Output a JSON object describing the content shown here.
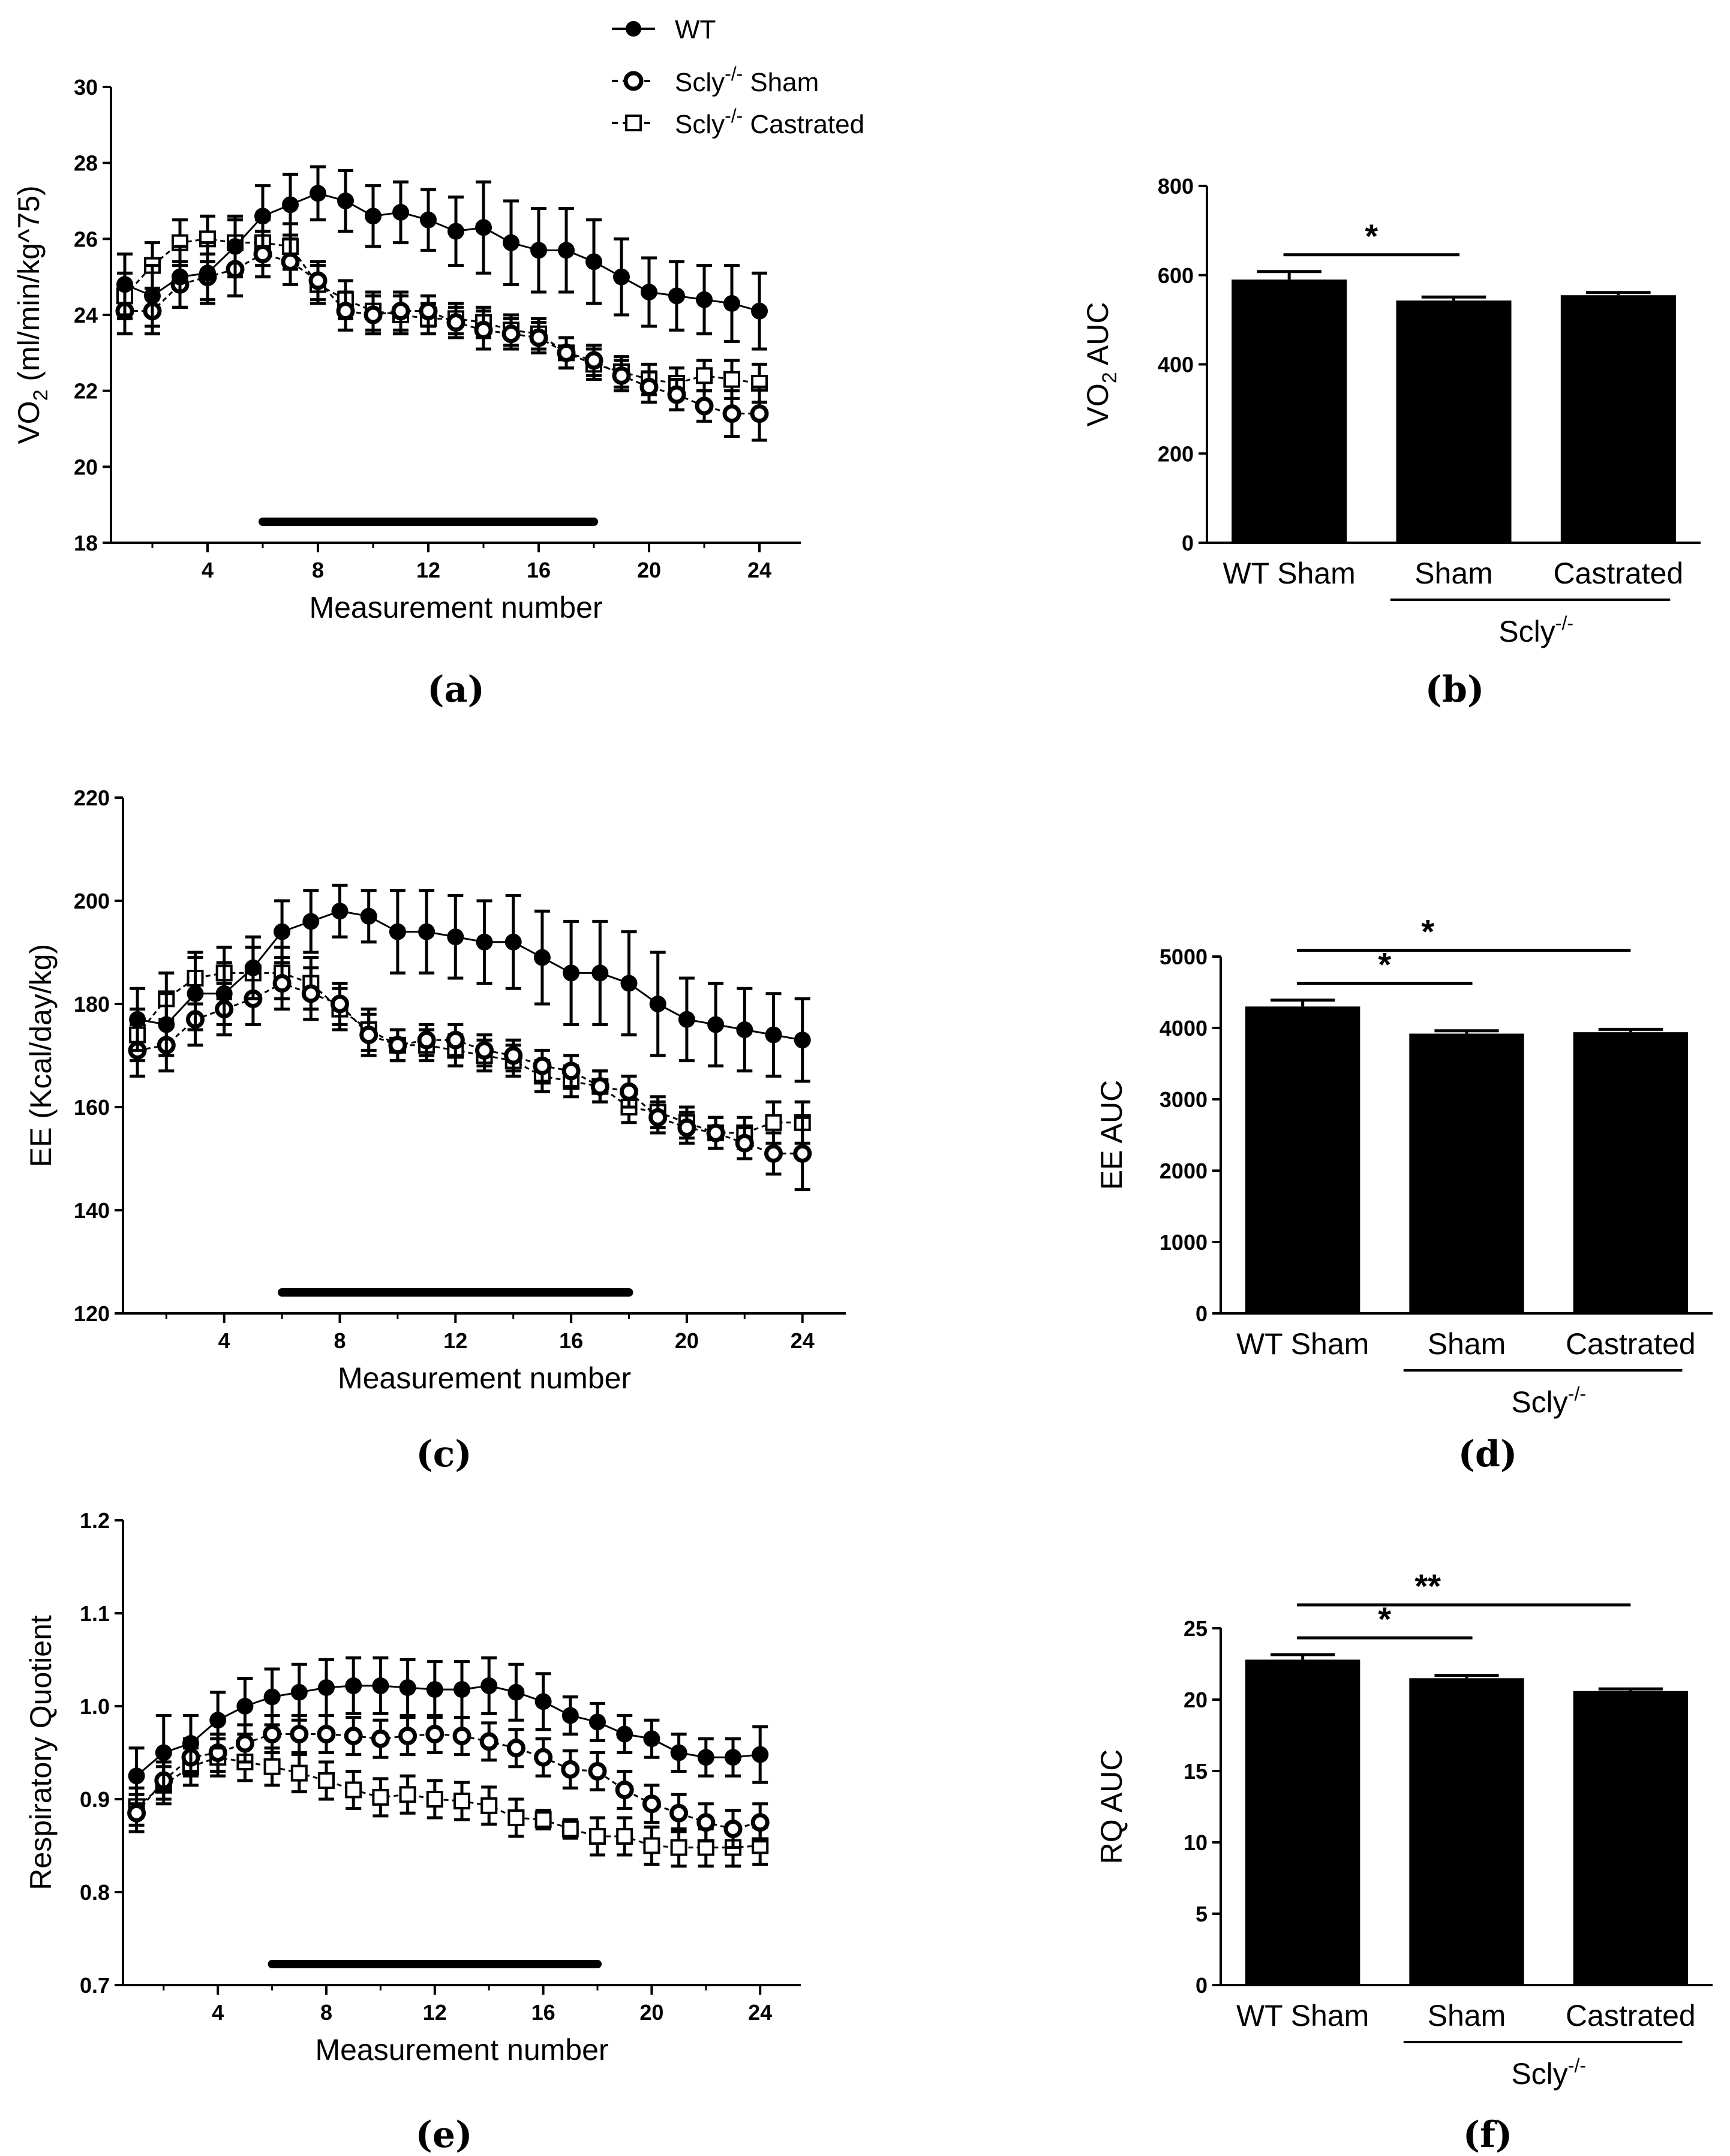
{
  "legend": {
    "wt": "WT",
    "sham": "Scly",
    "sham_suffix": "Sham",
    "castrated": "Scly",
    "castrated_suffix": "Castrated",
    "superscript": "-/-"
  },
  "chart_data": [
    {
      "id": "a",
      "type": "line",
      "panel_label": "(a)",
      "xlabel": "Measurement number",
      "ylabel": "VO",
      "ylabel_sub": "2",
      "ylabel_rest": " (ml/min/kg^75)",
      "xlim": [
        0.5,
        25.5
      ],
      "ylim": [
        18,
        30
      ],
      "xticks": [
        "4",
        "8",
        "12",
        "16",
        "20",
        "24"
      ],
      "yticks": [
        "18",
        "20",
        "22",
        "24",
        "26",
        "28",
        "30"
      ],
      "x": [
        1,
        2,
        3,
        4,
        5,
        6,
        7,
        8,
        9,
        10,
        11,
        12,
        13,
        14,
        15,
        16,
        17,
        18,
        19,
        20,
        21,
        22,
        23,
        24
      ],
      "series": [
        {
          "name": "WT",
          "marker": "filled-circle",
          "values": [
            24.8,
            24.5,
            25.0,
            25.1,
            25.8,
            26.6,
            26.9,
            27.2,
            27.0,
            26.6,
            26.7,
            26.5,
            26.2,
            26.3,
            25.9,
            25.7,
            25.7,
            25.4,
            25.0,
            24.6,
            24.5,
            24.4,
            24.3,
            24.1
          ],
          "errors": [
            0.8,
            0.8,
            0.8,
            0.8,
            0.8,
            0.8,
            0.8,
            0.7,
            0.8,
            0.8,
            0.8,
            0.8,
            0.9,
            1.2,
            1.1,
            1.1,
            1.1,
            1.1,
            1.0,
            0.9,
            0.9,
            0.9,
            1.0,
            1.0
          ]
        },
        {
          "name": "Scly-/- Sham",
          "marker": "open-circle",
          "values": [
            24.1,
            24.1,
            24.8,
            25.0,
            25.2,
            25.6,
            25.4,
            24.9,
            24.1,
            24.0,
            24.1,
            24.1,
            23.8,
            23.6,
            23.5,
            23.4,
            23.0,
            22.8,
            22.4,
            22.1,
            21.9,
            21.6,
            21.4,
            21.4
          ],
          "errors": [
            0.6,
            0.6,
            0.6,
            0.6,
            0.7,
            0.6,
            0.6,
            0.5,
            0.5,
            0.5,
            0.5,
            0.4,
            0.4,
            0.5,
            0.4,
            0.4,
            0.4,
            0.4,
            0.4,
            0.4,
            0.4,
            0.4,
            0.6,
            0.7
          ]
        },
        {
          "name": "Scly-/- Castrated",
          "marker": "open-square",
          "values": [
            24.5,
            25.3,
            25.9,
            26.0,
            25.9,
            25.9,
            25.8,
            24.8,
            24.4,
            24.1,
            24.0,
            23.9,
            23.9,
            23.8,
            23.6,
            23.5,
            23.0,
            22.7,
            22.5,
            22.3,
            22.2,
            22.4,
            22.3,
            22.2
          ],
          "errors": [
            0.6,
            0.6,
            0.6,
            0.6,
            0.6,
            0.6,
            0.6,
            0.5,
            0.5,
            0.5,
            0.5,
            0.4,
            0.4,
            0.4,
            0.4,
            0.4,
            0.4,
            0.4,
            0.4,
            0.4,
            0.4,
            0.4,
            0.5,
            0.5
          ]
        }
      ],
      "dark_phase": [
        6,
        18
      ]
    },
    {
      "id": "b",
      "type": "bar",
      "panel_label": "(b)",
      "ylabel": "VO",
      "ylabel_sub": "2",
      "ylabel_rest": " AUC",
      "ylim": [
        0,
        800
      ],
      "yticks": [
        "0",
        "200",
        "400",
        "600",
        "800"
      ],
      "categories": [
        "WT Sham",
        "Sham",
        "Castrated"
      ],
      "values": [
        590,
        543,
        555
      ],
      "errors": [
        18,
        8,
        6
      ],
      "group_label": "Scly",
      "group_sup": "-/-",
      "significance": [
        {
          "from": 0,
          "to": 1,
          "label": "*"
        }
      ]
    },
    {
      "id": "c",
      "type": "line",
      "panel_label": "(c)",
      "xlabel": "Measurement number",
      "ylabel": "EE (Kcal/day/kg)",
      "ylabel_sub": "",
      "ylabel_rest": "",
      "xlim": [
        0.5,
        25.5
      ],
      "ylim": [
        120,
        220
      ],
      "xticks": [
        "4",
        "8",
        "12",
        "16",
        "20",
        "24"
      ],
      "yticks": [
        "120",
        "140",
        "160",
        "180",
        "200",
        "220"
      ],
      "x": [
        1,
        2,
        3,
        4,
        5,
        6,
        7,
        8,
        9,
        10,
        11,
        12,
        13,
        14,
        15,
        16,
        17,
        18,
        19,
        20,
        21,
        22,
        23,
        24
      ],
      "series": [
        {
          "name": "WT",
          "marker": "filled-circle",
          "values": [
            177,
            176,
            182,
            182,
            187,
            194,
            196,
            198,
            197,
            194,
            194,
            193,
            192,
            192,
            189,
            186,
            186,
            184,
            180,
            177,
            176,
            175,
            174,
            173
          ],
          "errors": [
            6,
            6,
            7,
            6,
            6,
            6,
            6,
            5,
            5,
            8,
            8,
            8,
            8,
            9,
            9,
            10,
            10,
            10,
            10,
            8,
            8,
            8,
            8,
            8
          ]
        },
        {
          "name": "Scly-/- Sham",
          "marker": "open-circle",
          "values": [
            171,
            172,
            177,
            179,
            181,
            184,
            182,
            180,
            174,
            172,
            173,
            173,
            171,
            170,
            168,
            167,
            164,
            163,
            158,
            156,
            155,
            153,
            151,
            151
          ],
          "errors": [
            5,
            5,
            5,
            5,
            5,
            5,
            5,
            4,
            4,
            3,
            3,
            3,
            3,
            3,
            3,
            3,
            3,
            3,
            3,
            3,
            3,
            3,
            4,
            7
          ]
        },
        {
          "name": "Scly-/- Castrated",
          "marker": "open-square",
          "values": [
            174,
            181,
            185,
            186,
            186,
            186,
            184,
            179,
            175,
            172,
            172,
            171,
            170,
            169,
            166,
            165,
            164,
            160,
            159,
            157,
            155,
            155,
            157,
            157
          ],
          "errors": [
            5,
            5,
            5,
            5,
            5,
            5,
            5,
            4,
            4,
            3,
            3,
            3,
            3,
            3,
            3,
            3,
            3,
            3,
            3,
            3,
            3,
            3,
            4,
            4
          ]
        }
      ],
      "dark_phase": [
        6,
        18
      ]
    },
    {
      "id": "d",
      "type": "bar",
      "panel_label": "(d)",
      "ylabel": "EE AUC",
      "ylabel_sub": "",
      "ylabel_rest": "",
      "ylim": [
        0,
        5000
      ],
      "yticks": [
        "0",
        "1000",
        "2000",
        "3000",
        "4000",
        "5000"
      ],
      "categories": [
        "WT Sham",
        "Sham",
        "Castrated"
      ],
      "values": [
        4300,
        3920,
        3940
      ],
      "errors": [
        90,
        40,
        40
      ],
      "group_label": "Scly",
      "group_sup": "-/-",
      "significance": [
        {
          "from": 0,
          "to": 1,
          "label": "*"
        },
        {
          "from": 0,
          "to": 2,
          "label": "*"
        }
      ]
    },
    {
      "id": "e",
      "type": "line",
      "panel_label": "(e)",
      "xlabel": "Measurement number",
      "ylabel": "Respiratory Quotient",
      "ylabel_sub": "",
      "ylabel_rest": "",
      "xlim": [
        0.5,
        25.5
      ],
      "ylim": [
        0.7,
        1.2
      ],
      "xticks": [
        "4",
        "8",
        "12",
        "16",
        "20",
        "24"
      ],
      "yticks": [
        "0.7",
        "0.8",
        "0.9",
        "1.0",
        "1.1",
        "1.2"
      ],
      "x": [
        1,
        2,
        3,
        4,
        5,
        6,
        7,
        8,
        9,
        10,
        11,
        12,
        13,
        14,
        15,
        16,
        17,
        18,
        19,
        20,
        21,
        22,
        23,
        24
      ],
      "series": [
        {
          "name": "WT",
          "marker": "filled-circle",
          "values": [
            0.925,
            0.95,
            0.96,
            0.985,
            1.0,
            1.01,
            1.015,
            1.02,
            1.022,
            1.022,
            1.02,
            1.018,
            1.018,
            1.022,
            1.015,
            1.005,
            0.99,
            0.983,
            0.97,
            0.965,
            0.95,
            0.945,
            0.945,
            0.948
          ],
          "errors": [
            0.03,
            0.04,
            0.03,
            0.03,
            0.03,
            0.03,
            0.03,
            0.03,
            0.03,
            0.03,
            0.03,
            0.03,
            0.03,
            0.03,
            0.03,
            0.03,
            0.02,
            0.02,
            0.02,
            0.02,
            0.02,
            0.02,
            0.02,
            0.03
          ]
        },
        {
          "name": "Scly-/- Sham",
          "marker": "open-circle",
          "values": [
            0.885,
            0.92,
            0.945,
            0.95,
            0.96,
            0.97,
            0.97,
            0.97,
            0.968,
            0.965,
            0.968,
            0.97,
            0.968,
            0.962,
            0.955,
            0.945,
            0.932,
            0.93,
            0.91,
            0.895,
            0.885,
            0.875,
            0.868,
            0.875
          ],
          "errors": [
            0.02,
            0.02,
            0.02,
            0.02,
            0.02,
            0.02,
            0.02,
            0.02,
            0.02,
            0.02,
            0.02,
            0.02,
            0.02,
            0.02,
            0.02,
            0.02,
            0.02,
            0.02,
            0.02,
            0.02,
            0.02,
            0.02,
            0.02,
            0.02
          ]
        },
        {
          "name": "Scly-/- Castrated",
          "marker": "open-square",
          "values": [
            0.892,
            0.915,
            0.935,
            0.945,
            0.94,
            0.935,
            0.928,
            0.92,
            0.91,
            0.902,
            0.905,
            0.9,
            0.898,
            0.893,
            0.88,
            0.878,
            0.868,
            0.86,
            0.86,
            0.85,
            0.848,
            0.848,
            0.848,
            0.85
          ],
          "errors": [
            0.02,
            0.02,
            0.02,
            0.02,
            0.02,
            0.02,
            0.02,
            0.02,
            0.02,
            0.02,
            0.02,
            0.02,
            0.02,
            0.02,
            0.02,
            0.01,
            0.01,
            0.02,
            0.02,
            0.02,
            0.02,
            0.02,
            0.02,
            0.02
          ]
        }
      ],
      "dark_phase": [
        6,
        18
      ]
    },
    {
      "id": "f",
      "type": "bar",
      "panel_label": "(f)",
      "ylabel": "RQ AUC",
      "ylabel_sub": "",
      "ylabel_rest": "",
      "ylim": [
        0,
        25
      ],
      "yticks": [
        "0",
        "5",
        "10",
        "15",
        "20",
        "25"
      ],
      "categories": [
        "WT Sham",
        "Sham",
        "Castrated"
      ],
      "values": [
        22.8,
        21.5,
        20.6
      ],
      "errors": [
        0.35,
        0.2,
        0.15
      ],
      "group_label": "Scly",
      "group_sup": "-/-",
      "significance": [
        {
          "from": 0,
          "to": 1,
          "label": "*"
        },
        {
          "from": 0,
          "to": 2,
          "label": "**"
        }
      ]
    }
  ]
}
